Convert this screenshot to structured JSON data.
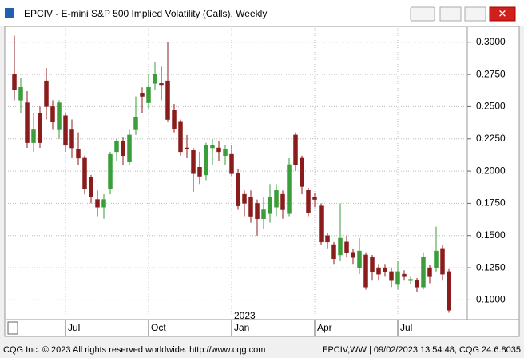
{
  "window": {
    "title": "EPCIV - E-mini S&P 500 Implied Volatility (Calls), Weekly",
    "status_left": "CQG Inc. © 2023 All rights reserved worldwide. http://www.cqg.com",
    "status_right": "EPCIV,WW | 09/02/2023 13:54:48, CQG 24.6.8035"
  },
  "chart_data": {
    "type": "candlestick",
    "up_color": "#3a9e3a",
    "down_color": "#8b1c1c",
    "grid": true,
    "annotations": [
      "2023"
    ],
    "categories": [
      null,
      null,
      null,
      null,
      null,
      null,
      null,
      null,
      "Jul",
      null,
      null,
      null,
      null,
      null,
      null,
      null,
      null,
      null,
      null,
      null,
      null,
      "Oct",
      null,
      null,
      null,
      null,
      null,
      null,
      null,
      null,
      null,
      null,
      null,
      null,
      "Jan",
      null,
      null,
      null,
      null,
      null,
      null,
      null,
      null,
      null,
      null,
      null,
      null,
      "Apr",
      null,
      null,
      null,
      null,
      null,
      null,
      null,
      null,
      null,
      null,
      null,
      null,
      "Jul",
      null,
      null,
      null,
      null,
      null,
      null,
      null,
      null
    ],
    "open": [
      0.275,
      0.255,
      0.253,
      0.222,
      0.245,
      0.27,
      0.25,
      0.232,
      0.243,
      0.232,
      0.217,
      0.21,
      0.195,
      0.178,
      0.172,
      0.186,
      0.215,
      0.223,
      0.207,
      0.232,
      0.26,
      0.253,
      0.268,
      0.268,
      0.27,
      0.247,
      0.238,
      0.218,
      0.216,
      0.203,
      0.197,
      0.218,
      0.218,
      0.212,
      0.213,
      0.198,
      0.182,
      0.18,
      0.175,
      0.163,
      0.167,
      0.172,
      0.182,
      0.167,
      0.228,
      0.21,
      0.185,
      0.18,
      0.173,
      0.15,
      0.143,
      0.135,
      0.145,
      0.137,
      0.125,
      0.135,
      0.133,
      0.125,
      0.125,
      0.122,
      0.112,
      0.12,
      0.115,
      0.115,
      0.11,
      0.125,
      0.125,
      0.14,
      0.122
    ],
    "high": [
      0.305,
      0.272,
      0.262,
      0.245,
      0.25,
      0.28,
      0.255,
      0.255,
      0.245,
      0.24,
      0.23,
      0.212,
      0.197,
      0.185,
      0.182,
      0.215,
      0.225,
      0.226,
      0.232,
      0.258,
      0.265,
      0.275,
      0.285,
      0.281,
      0.3,
      0.252,
      0.24,
      0.228,
      0.218,
      0.215,
      0.222,
      0.225,
      0.223,
      0.22,
      0.22,
      0.202,
      0.185,
      0.185,
      0.178,
      0.18,
      0.19,
      0.19,
      0.185,
      0.21,
      0.23,
      0.212,
      0.187,
      0.183,
      0.175,
      0.152,
      0.145,
      0.175,
      0.15,
      0.14,
      0.148,
      0.137,
      0.135,
      0.128,
      0.128,
      0.125,
      0.13,
      0.123,
      0.118,
      0.117,
      0.137,
      0.127,
      0.157,
      0.143,
      0.124
    ],
    "low": [
      0.255,
      0.245,
      0.218,
      0.215,
      0.218,
      0.24,
      0.232,
      0.225,
      0.215,
      0.21,
      0.205,
      0.182,
      0.175,
      0.165,
      0.163,
      0.182,
      0.208,
      0.205,
      0.205,
      0.228,
      0.245,
      0.248,
      0.263,
      0.255,
      0.238,
      0.23,
      0.212,
      0.21,
      0.184,
      0.19,
      0.193,
      0.205,
      0.208,
      0.205,
      0.196,
      0.17,
      0.165,
      0.16,
      0.15,
      0.155,
      0.16,
      0.165,
      0.163,
      0.165,
      0.2,
      0.182,
      0.165,
      0.172,
      0.143,
      0.14,
      0.128,
      0.13,
      0.133,
      0.128,
      0.12,
      0.108,
      0.115,
      0.115,
      0.118,
      0.11,
      0.108,
      0.115,
      0.112,
      0.106,
      0.108,
      0.113,
      0.122,
      0.115,
      0.09
    ],
    "close": [
      0.263,
      0.265,
      0.222,
      0.232,
      0.222,
      0.25,
      0.238,
      0.253,
      0.22,
      0.218,
      0.21,
      0.186,
      0.18,
      0.172,
      0.178,
      0.213,
      0.223,
      0.212,
      0.228,
      0.242,
      0.258,
      0.265,
      0.275,
      0.267,
      0.24,
      0.233,
      0.215,
      0.217,
      0.198,
      0.196,
      0.22,
      0.22,
      0.215,
      0.217,
      0.198,
      0.173,
      0.175,
      0.165,
      0.163,
      0.17,
      0.18,
      0.185,
      0.17,
      0.205,
      0.205,
      0.188,
      0.168,
      0.178,
      0.145,
      0.145,
      0.132,
      0.148,
      0.137,
      0.133,
      0.138,
      0.11,
      0.122,
      0.12,
      0.122,
      0.115,
      0.122,
      0.118,
      0.116,
      0.11,
      0.133,
      0.118,
      0.138,
      0.12,
      0.092
    ],
    "ylim": [
      0.086,
      0.311
    ],
    "yticks": [
      {
        "value": 0.1,
        "label": "0.1000"
      },
      {
        "value": 0.125,
        "label": "0.1250"
      },
      {
        "value": 0.15,
        "label": "0.1500"
      },
      {
        "value": 0.175,
        "label": "0.1750"
      },
      {
        "value": 0.2,
        "label": "0.2000"
      },
      {
        "value": 0.225,
        "label": "0.2250"
      },
      {
        "value": 0.25,
        "label": "0.2500"
      },
      {
        "value": 0.275,
        "label": "0.2750"
      },
      {
        "value": 0.3,
        "label": "0.3000"
      }
    ]
  }
}
